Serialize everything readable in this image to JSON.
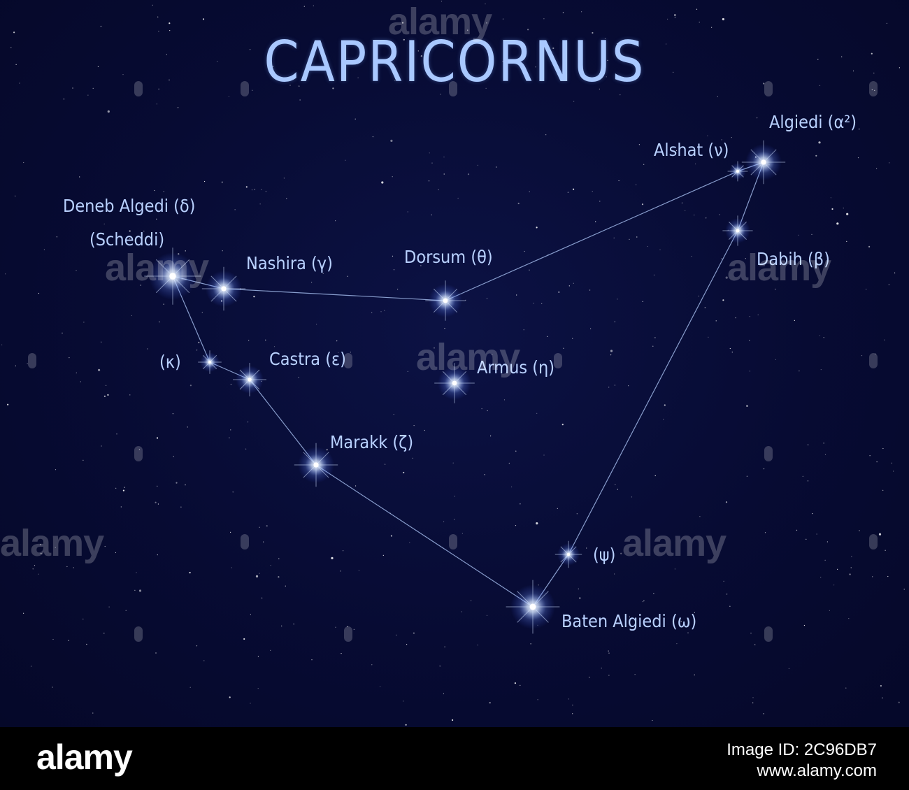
{
  "title": "CAPRICORNUS",
  "stars": {
    "delta": "Deneb Algedi (δ)",
    "delta_alt": "(Scheddi)",
    "gamma": "Nashira (γ)",
    "theta": "Dorsum (θ)",
    "nu": "Alshat (ν)",
    "alpha2": "Algiedi (α²)",
    "beta": "Dabih (β)",
    "kappa": "(κ)",
    "epsilon": "Castra (ε)",
    "eta": "Armus (η)",
    "zeta": "Marakk (ζ)",
    "psi": "(ψ)",
    "omega": "Baten Algiedi (ω)"
  },
  "watermark": "alamy",
  "footer": {
    "logo": "alamy",
    "image_id": "Image ID: 2C96DB7",
    "site": "www.alamy.com"
  },
  "colors": {
    "sky": "#070b33",
    "label": "#b9d1ff",
    "title": "#a9c8ff",
    "line": "#9fb6e6"
  }
}
